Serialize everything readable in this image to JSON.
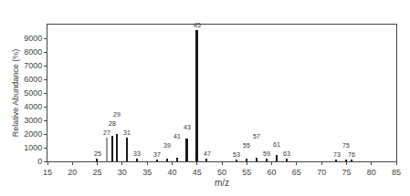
{
  "chart_data": {
    "type": "bar",
    "x": [
      25,
      27,
      28,
      29,
      31,
      33,
      37,
      39,
      41,
      43,
      45,
      47,
      53,
      55,
      57,
      59,
      61,
      63,
      73,
      75,
      76
    ],
    "values": [
      180,
      1750,
      1900,
      2000,
      1750,
      220,
      160,
      230,
      280,
      1650,
      9600,
      200,
      160,
      220,
      250,
      200,
      480,
      180,
      150,
      140,
      120
    ],
    "colors": [
      "#1a1a1a",
      "#999999",
      "#1a1a1a",
      "#1a1a1a",
      "#1a1a1a",
      "#1a1a1a",
      "#1a1a1a",
      "#1a1a1a",
      "#1a1a1a",
      "#1a1a1a",
      "#1a1a1a",
      "#1a1a1a",
      "#1a1a1a",
      "#1a1a1a",
      "#1a1a1a",
      "#1a1a1a",
      "#1a1a1a",
      "#1a1a1a",
      "#1a1a1a",
      "#1a1a1a",
      "#1a1a1a"
    ],
    "annotations": [
      {
        "x": 25,
        "text": "25"
      },
      {
        "x": 27,
        "text": "27"
      },
      {
        "x": 28,
        "text": "28"
      },
      {
        "x": 29,
        "text": "29"
      },
      {
        "x": 31,
        "text": "31"
      },
      {
        "x": 33,
        "text": "33"
      },
      {
        "x": 37,
        "text": "37"
      },
      {
        "x": 39,
        "text": "39"
      },
      {
        "x": 41,
        "text": "41"
      },
      {
        "x": 43,
        "text": "43"
      },
      {
        "x": 45,
        "text": "45"
      },
      {
        "x": 47,
        "text": "47"
      },
      {
        "x": 53,
        "text": "53"
      },
      {
        "x": 55,
        "text": "55"
      },
      {
        "x": 57,
        "text": "57"
      },
      {
        "x": 59,
        "text": "59"
      },
      {
        "x": 61,
        "text": "61"
      },
      {
        "x": 63,
        "text": "63"
      },
      {
        "x": 73,
        "text": "73"
      },
      {
        "x": 75,
        "text": "75"
      },
      {
        "x": 76,
        "text": "76"
      }
    ],
    "xlim": [
      15,
      85
    ],
    "xticks": [
      15,
      20,
      25,
      30,
      35,
      40,
      45,
      50,
      55,
      60,
      65,
      70,
      75,
      80,
      85
    ],
    "ylim": [
      0,
      10000
    ],
    "yticks": [
      0,
      1000,
      2000,
      3000,
      4000,
      5000,
      6000,
      7000,
      8000,
      9000
    ],
    "xlabel": "m/z",
    "ylabel": "Relative Abundance (%)",
    "grid": false
  }
}
